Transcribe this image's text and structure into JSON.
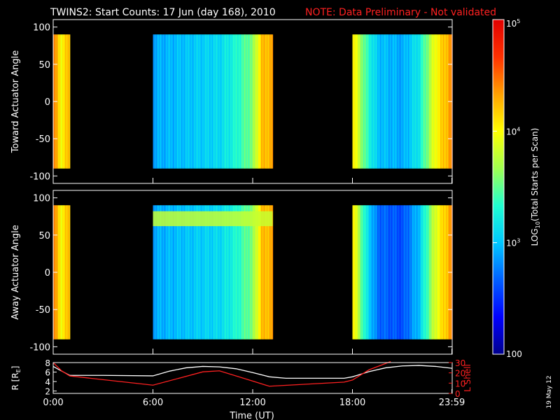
{
  "title": "TWINS2: Start Counts: 17 Jun (day 168), 2010",
  "note": "NOTE: Data Preliminary - Not validated",
  "date_stamp": "19 May 12",
  "colors": {
    "background": "#000000",
    "axes": "#ffffff",
    "note": "#ff2020",
    "r_line": "#ffffff",
    "l_line": "#ff2020"
  },
  "colorbar": {
    "label": "LOG10(Total Starts per Scan)",
    "label_main": "LOG",
    "label_sub": "10",
    "label_rest": "(Total Starts per Scan)",
    "scale": "log",
    "range": [
      100,
      100000
    ],
    "ticks": [
      {
        "value": 100000,
        "label": "10",
        "exp": "5"
      },
      {
        "value": 10000,
        "label": "10",
        "exp": "4"
      },
      {
        "value": 1000,
        "label": "10",
        "exp": "3"
      },
      {
        "value": 100,
        "label": "100",
        "exp": ""
      }
    ],
    "colormap": [
      "#00008c",
      "#0000ff",
      "#0060ff",
      "#00c8ff",
      "#20ffd0",
      "#a0ff50",
      "#ffff00",
      "#ffa000",
      "#ff3000",
      "#e00000"
    ]
  },
  "chart_data": [
    {
      "type": "heatmap",
      "ylabel": "Toward Actuator Angle",
      "ylim": [
        -110,
        110
      ],
      "yticks": [
        100,
        50,
        0,
        -50,
        -100
      ],
      "angle_range": [
        -90,
        90
      ],
      "xlim": [
        0,
        24
      ],
      "log10_counts_profile": [
        [
          0.0,
          4.4
        ],
        [
          0.5,
          4.0
        ],
        [
          1.0,
          4.3
        ],
        [
          6.0,
          2.9
        ],
        [
          8.0,
          3.0
        ],
        [
          10.0,
          3.1
        ],
        [
          11.0,
          3.3
        ],
        [
          12.0,
          3.6
        ],
        [
          12.5,
          4.2
        ],
        [
          13.2,
          4.3
        ],
        [
          18.0,
          4.1
        ],
        [
          18.8,
          3.4
        ],
        [
          19.5,
          3.0
        ],
        [
          21.0,
          2.9
        ],
        [
          22.0,
          3.2
        ],
        [
          23.0,
          4.0
        ],
        [
          23.98,
          4.4
        ]
      ]
    },
    {
      "type": "heatmap",
      "ylabel": "Away Actuator Angle",
      "ylim": [
        -110,
        110
      ],
      "yticks": [
        100,
        50,
        0,
        -50,
        -100
      ],
      "angle_range": [
        -90,
        90
      ],
      "xlim": [
        0,
        24
      ],
      "log10_counts_profile": [
        [
          0.0,
          4.4
        ],
        [
          0.5,
          4.0
        ],
        [
          1.0,
          4.3
        ],
        [
          6.0,
          2.9
        ],
        [
          8.0,
          3.0
        ],
        [
          10.0,
          3.1
        ],
        [
          11.0,
          3.3
        ],
        [
          12.0,
          3.6
        ],
        [
          12.5,
          4.2
        ],
        [
          13.2,
          4.3
        ],
        [
          18.0,
          4.1
        ],
        [
          18.8,
          3.2
        ],
        [
          19.5,
          2.7
        ],
        [
          21.0,
          2.6
        ],
        [
          22.0,
          3.0
        ],
        [
          23.0,
          3.9
        ],
        [
          23.98,
          4.4
        ]
      ],
      "band": {
        "angle_range": [
          62,
          82
        ],
        "time_range": [
          6.0,
          13.2
        ],
        "log10_counts": 3.8
      }
    },
    {
      "type": "line",
      "xlabel": "Time (UT)",
      "xlim": [
        0,
        24
      ],
      "xticks": [
        {
          "value": 0,
          "label": "0:00"
        },
        {
          "value": 6,
          "label": "6:00"
        },
        {
          "value": 12,
          "label": "12:00"
        },
        {
          "value": 18,
          "label": "18:00"
        },
        {
          "value": 23.98,
          "label": "23:59"
        }
      ],
      "ylabel": "R [RE]",
      "ylabel_main": "R [R",
      "ylabel_sub": "E",
      "ylabel_end": "]",
      "ylim": [
        1.5,
        8
      ],
      "yticks": [
        2,
        4,
        6,
        8
      ],
      "y2label": "L Shell",
      "y2lim": [
        0,
        30
      ],
      "y2ticks": [
        0,
        10,
        20,
        30
      ],
      "series": [
        {
          "axis": "left",
          "color": "#ffffff",
          "x": [
            0,
            0.3,
            1.0,
            3.0,
            6.0,
            7.0,
            8.0,
            9.0,
            10.0,
            11.0,
            12.0,
            13.0,
            14.0,
            17.5,
            18.0,
            19.0,
            20.0,
            21.0,
            22.0,
            23.0,
            23.98
          ],
          "y": [
            7.2,
            6.6,
            5.3,
            5.3,
            5.2,
            6.2,
            6.9,
            7.2,
            7.1,
            6.7,
            5.9,
            5.0,
            4.7,
            4.7,
            5.0,
            6.1,
            6.9,
            7.3,
            7.4,
            7.2,
            6.8
          ]
        },
        {
          "axis": "right",
          "color": "#ff2020",
          "x": [
            0,
            0.5,
            1.0,
            6.0,
            9.0,
            10.0,
            12.0,
            13.0,
            17.5,
            18.0,
            19.0,
            20.3
          ],
          "y": [
            30,
            22,
            17,
            8,
            21,
            22,
            12,
            7,
            11,
            13,
            23,
            31
          ]
        }
      ]
    }
  ]
}
